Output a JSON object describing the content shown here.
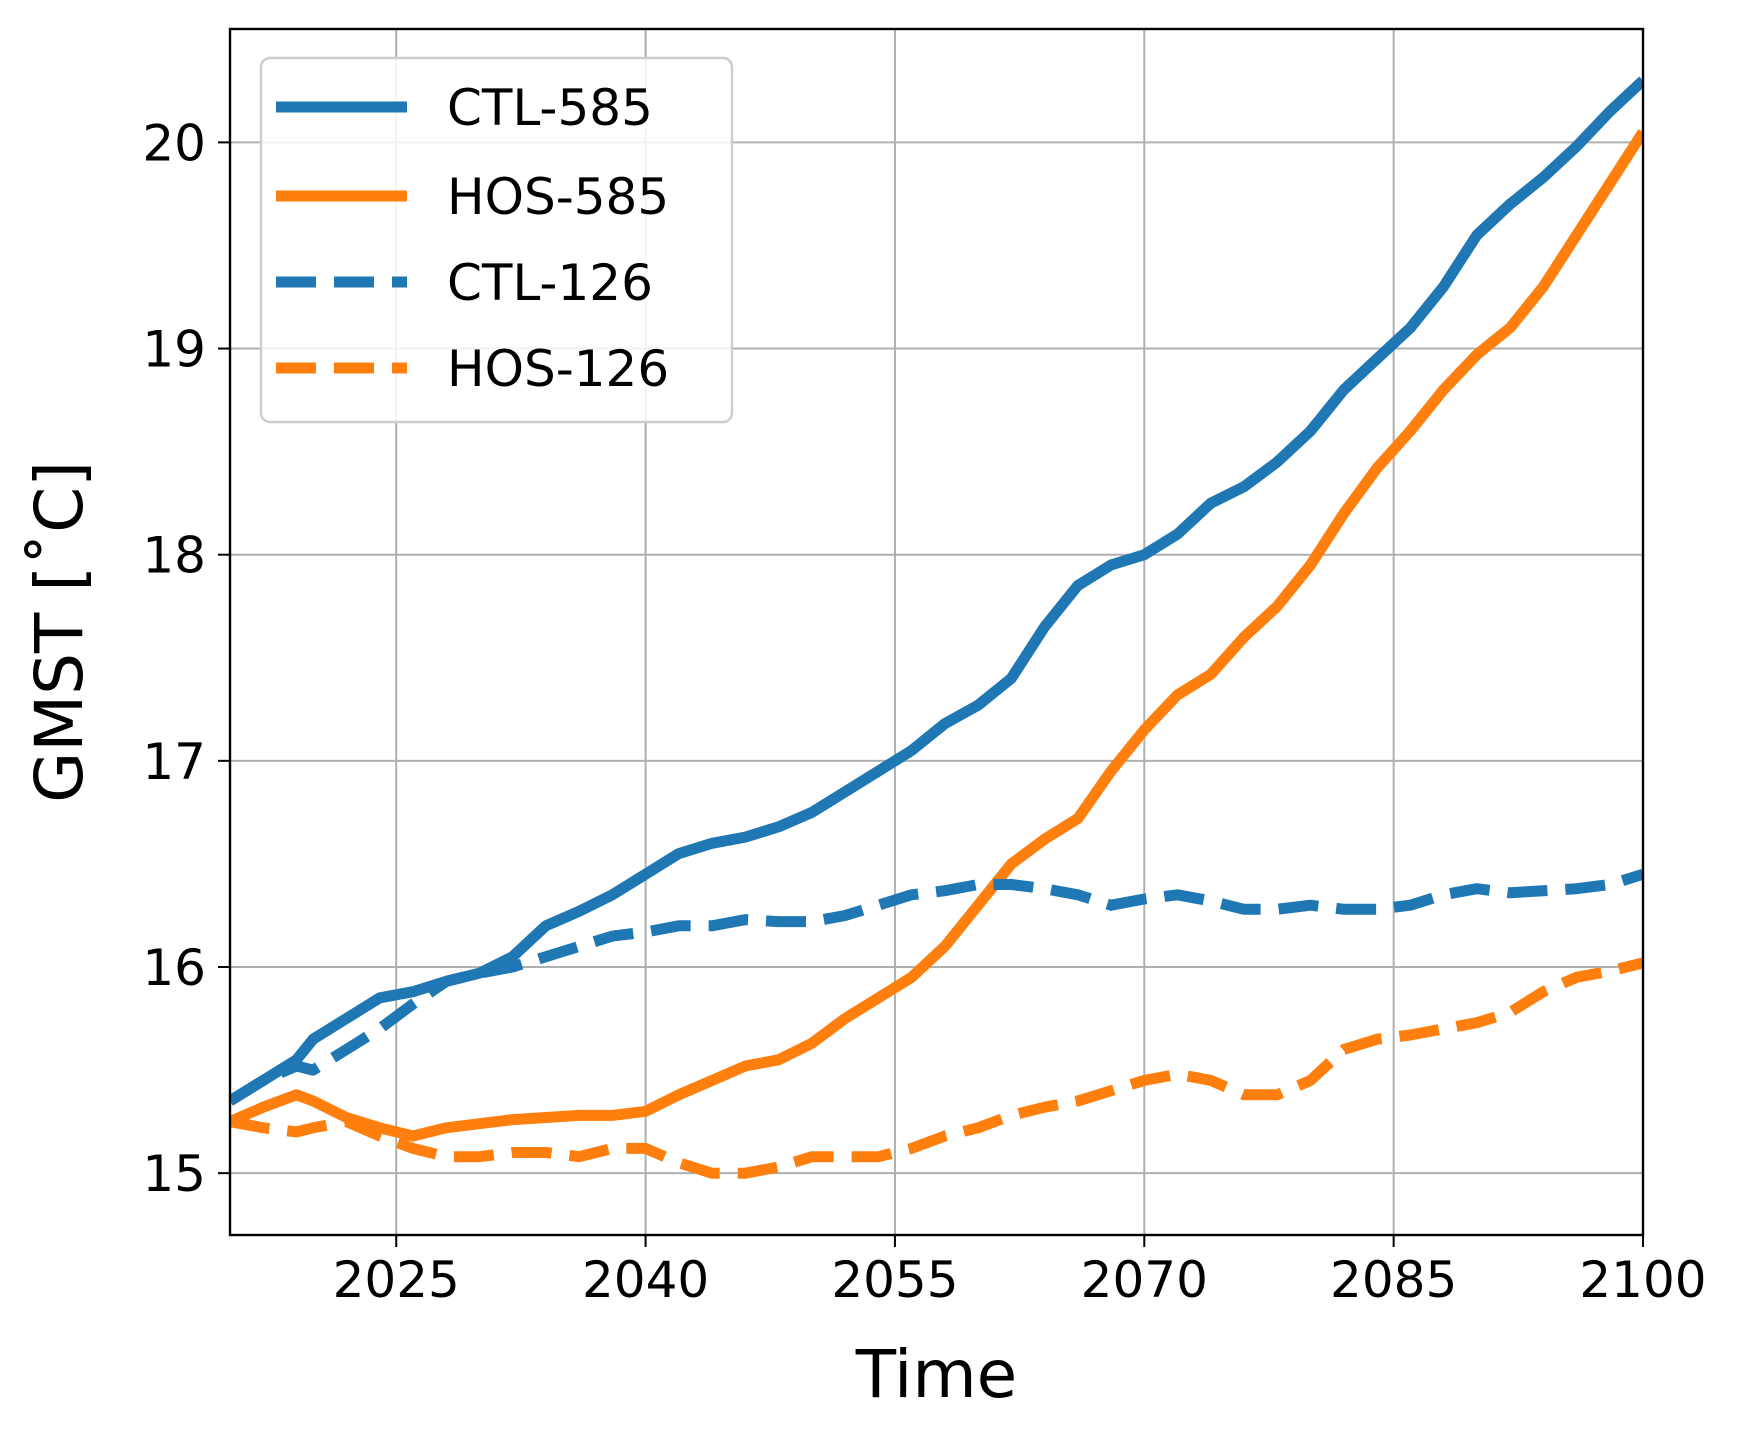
{
  "chart_data": {
    "type": "line",
    "title": "",
    "xlabel": "Time",
    "ylabel": "GMST [˚C]",
    "xlim": [
      2015,
      2100
    ],
    "ylim": [
      14.7,
      20.55
    ],
    "xticks": [
      2025,
      2040,
      2055,
      2070,
      2085,
      2100
    ],
    "yticks": [
      15,
      16,
      17,
      18,
      19,
      20
    ],
    "grid": true,
    "legend_position": "top-left",
    "series": [
      {
        "name": "CTL-585",
        "color": "#1f77b4",
        "style": "solid",
        "x": [
          2015,
          2017,
          2019,
          2020,
          2022,
          2024,
          2026,
          2028,
          2030,
          2032,
          2034,
          2036,
          2038,
          2040,
          2042,
          2044,
          2046,
          2048,
          2050,
          2052,
          2054,
          2056,
          2058,
          2060,
          2062,
          2064,
          2066,
          2068,
          2070,
          2072,
          2074,
          2076,
          2078,
          2080,
          2082,
          2084,
          2086,
          2088,
          2090,
          2092,
          2094,
          2096,
          2098,
          2100
        ],
        "y": [
          15.35,
          15.45,
          15.55,
          15.65,
          15.75,
          15.85,
          15.88,
          15.93,
          15.97,
          16.05,
          16.2,
          16.27,
          16.35,
          16.45,
          16.55,
          16.6,
          16.63,
          16.68,
          16.75,
          16.85,
          16.95,
          17.05,
          17.18,
          17.27,
          17.4,
          17.65,
          17.85,
          17.95,
          18.0,
          18.1,
          18.25,
          18.33,
          18.45,
          18.6,
          18.8,
          18.95,
          19.1,
          19.3,
          19.55,
          19.7,
          19.83,
          19.98,
          20.15,
          20.3
        ]
      },
      {
        "name": "HOS-585",
        "color": "#ff7f0e",
        "style": "solid",
        "x": [
          2015,
          2017,
          2019,
          2020,
          2022,
          2024,
          2026,
          2028,
          2030,
          2032,
          2034,
          2036,
          2038,
          2040,
          2042,
          2044,
          2046,
          2048,
          2050,
          2052,
          2054,
          2056,
          2058,
          2060,
          2062,
          2064,
          2066,
          2068,
          2070,
          2072,
          2074,
          2076,
          2078,
          2080,
          2082,
          2084,
          2086,
          2088,
          2090,
          2092,
          2094,
          2096,
          2098,
          2100
        ],
        "y": [
          15.25,
          15.32,
          15.38,
          15.35,
          15.27,
          15.22,
          15.18,
          15.22,
          15.24,
          15.26,
          15.27,
          15.28,
          15.28,
          15.3,
          15.38,
          15.45,
          15.52,
          15.55,
          15.63,
          15.75,
          15.85,
          15.95,
          16.1,
          16.3,
          16.5,
          16.62,
          16.72,
          16.95,
          17.15,
          17.32,
          17.42,
          17.6,
          17.75,
          17.95,
          18.2,
          18.42,
          18.6,
          18.8,
          18.97,
          19.1,
          19.3,
          19.55,
          19.8,
          20.05
        ]
      },
      {
        "name": "CTL-126",
        "color": "#1f77b4",
        "style": "dashed",
        "x": [
          2015,
          2017,
          2019,
          2020,
          2022,
          2024,
          2026,
          2028,
          2030,
          2032,
          2034,
          2036,
          2038,
          2040,
          2042,
          2044,
          2046,
          2048,
          2050,
          2052,
          2054,
          2056,
          2058,
          2060,
          2062,
          2064,
          2066,
          2068,
          2070,
          2072,
          2074,
          2076,
          2078,
          2080,
          2082,
          2084,
          2086,
          2088,
          2090,
          2092,
          2094,
          2096,
          2098,
          2100
        ],
        "y": [
          15.35,
          15.45,
          15.52,
          15.5,
          15.6,
          15.7,
          15.82,
          15.93,
          15.97,
          16.0,
          16.05,
          16.1,
          16.15,
          16.17,
          16.2,
          16.2,
          16.23,
          16.22,
          16.22,
          16.25,
          16.3,
          16.35,
          16.37,
          16.4,
          16.4,
          16.38,
          16.35,
          16.3,
          16.33,
          16.35,
          16.32,
          16.28,
          16.28,
          16.3,
          16.28,
          16.28,
          16.3,
          16.35,
          16.38,
          16.36,
          16.37,
          16.38,
          16.4,
          16.45
        ]
      },
      {
        "name": "HOS-126",
        "color": "#ff7f0e",
        "style": "dashed",
        "x": [
          2015,
          2017,
          2019,
          2020,
          2022,
          2024,
          2026,
          2028,
          2030,
          2032,
          2034,
          2036,
          2038,
          2040,
          2042,
          2044,
          2046,
          2048,
          2050,
          2052,
          2054,
          2056,
          2058,
          2060,
          2062,
          2064,
          2066,
          2068,
          2070,
          2072,
          2074,
          2076,
          2078,
          2080,
          2082,
          2084,
          2086,
          2088,
          2090,
          2092,
          2094,
          2096,
          2098,
          2100
        ],
        "y": [
          15.25,
          15.22,
          15.2,
          15.22,
          15.25,
          15.18,
          15.12,
          15.08,
          15.08,
          15.1,
          15.1,
          15.08,
          15.12,
          15.12,
          15.05,
          15.0,
          15.0,
          15.03,
          15.08,
          15.08,
          15.08,
          15.12,
          15.18,
          15.22,
          15.28,
          15.32,
          15.35,
          15.4,
          15.45,
          15.48,
          15.45,
          15.38,
          15.38,
          15.45,
          15.6,
          15.65,
          15.67,
          15.7,
          15.73,
          15.78,
          15.88,
          15.95,
          15.98,
          16.02
        ]
      }
    ]
  }
}
